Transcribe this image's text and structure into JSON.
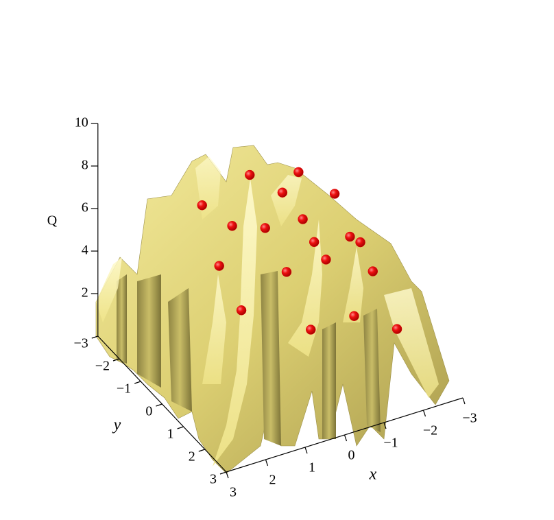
{
  "chart_data": {
    "type": "surface3d",
    "x_label": "x",
    "y_label": "y",
    "z_label": "Q",
    "xlim": [
      -3,
      3
    ],
    "ylim": [
      -3,
      3
    ],
    "zlim": [
      0,
      10
    ],
    "xticks": [
      3,
      2,
      1,
      0,
      {
        "value": -1,
        "label": "−1"
      },
      {
        "value": -2,
        "label": "−2"
      },
      {
        "value": -3,
        "label": "−3"
      }
    ],
    "yticks": [
      {
        "value": -3,
        "label": "−3"
      },
      {
        "value": -2,
        "label": "−2"
      },
      {
        "value": -1,
        "label": "−1"
      },
      0,
      1,
      2,
      3
    ],
    "zticks": [
      2,
      4,
      6,
      8,
      10
    ],
    "points": {
      "color": "#e00000",
      "x": [
        0.9,
        -0.2,
        -1.6,
        -1.3,
        -2.3,
        0.3,
        -0.7,
        -1.6,
        -1.4,
        -2.2,
        -2.3,
        -1.7,
        0.9,
        -0.7,
        -2.4,
        0.5,
        -0.5,
        -1.6,
        -2.2
      ],
      "y": [
        -2.0,
        -1.8,
        -2.1,
        -2.3,
        -1.7,
        -1.7,
        -2.0,
        -1.9,
        -1.0,
        -0.8,
        -0.5,
        -1.0,
        -1.2,
        -1.0,
        -0.1,
        -0.9,
        0.5,
        0.5,
        1.4
      ],
      "z": [
        6,
        7,
        6,
        5,
        5,
        5,
        4,
        4,
        4,
        4,
        4,
        3,
        4,
        3,
        3,
        2,
        2,
        2,
        2
      ]
    }
  }
}
